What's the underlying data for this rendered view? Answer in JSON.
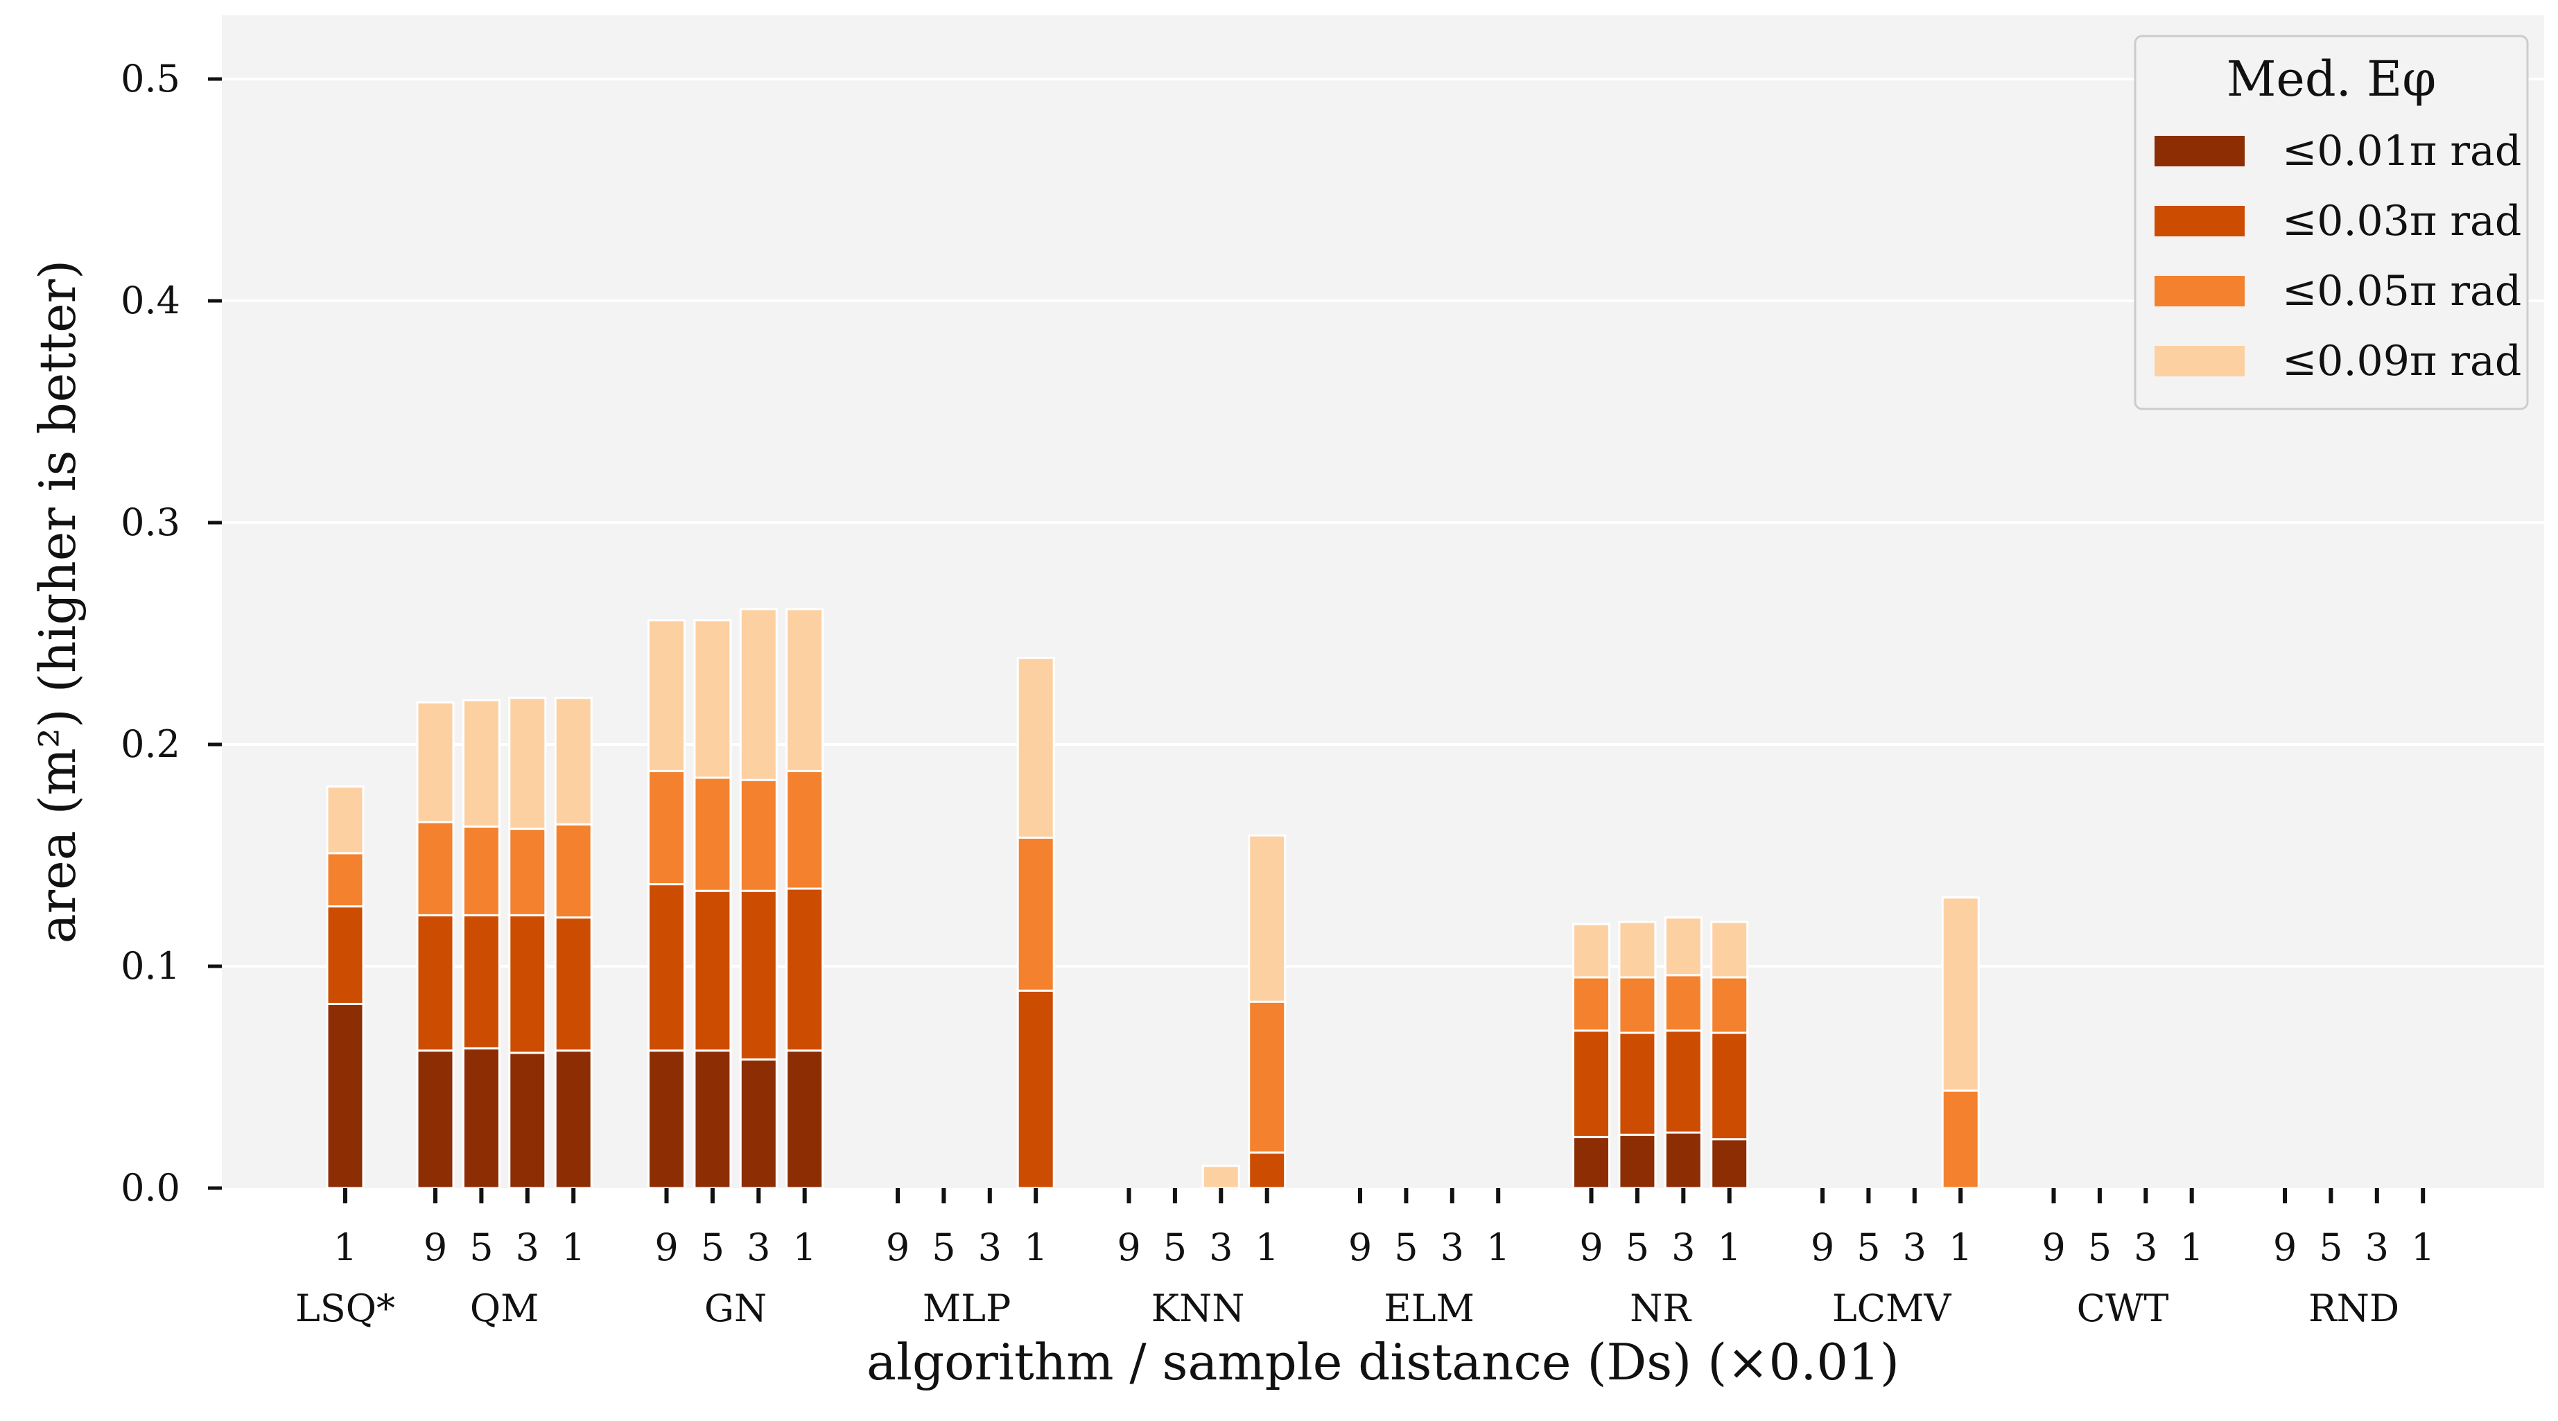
{
  "chart_data": {
    "type": "bar",
    "stacked": true,
    "xlabel": "algorithm / sample distance (Ds) (×0.01)",
    "ylabel": "area (m²) (higher is better)",
    "ylim": [
      0,
      0.52
    ],
    "yticks": [
      "0.0",
      "0.1",
      "0.2",
      "0.3",
      "0.4",
      "0.5"
    ],
    "grid": true,
    "legend": {
      "title": "Med. Eφ",
      "position": "top-right",
      "entries": [
        "≤0.01π rad",
        "≤0.03π rad",
        "≤0.05π rad",
        "≤0.09π rad"
      ]
    },
    "series_colors": [
      "#8c2d04",
      "#cc4c02",
      "#f4812d",
      "#fdd0a2"
    ],
    "groups": [
      {
        "name": "LSQ*",
        "ds": [
          "1"
        ],
        "values": [
          [
            0.083,
            0.127,
            0.151,
            0.181
          ]
        ]
      },
      {
        "name": "QM",
        "ds": [
          "9",
          "5",
          "3",
          "1"
        ],
        "values": [
          [
            0.062,
            0.123,
            0.165,
            0.219
          ],
          [
            0.063,
            0.123,
            0.163,
            0.22
          ],
          [
            0.061,
            0.123,
            0.162,
            0.221
          ],
          [
            0.062,
            0.122,
            0.164,
            0.221
          ]
        ]
      },
      {
        "name": "GN",
        "ds": [
          "9",
          "5",
          "3",
          "1"
        ],
        "values": [
          [
            0.062,
            0.137,
            0.188,
            0.256
          ],
          [
            0.062,
            0.134,
            0.185,
            0.256
          ],
          [
            0.058,
            0.134,
            0.184,
            0.261
          ],
          [
            0.062,
            0.135,
            0.188,
            0.261
          ]
        ]
      },
      {
        "name": "MLP",
        "ds": [
          "9",
          "5",
          "3",
          "1"
        ],
        "values": [
          [
            0,
            0,
            0,
            0
          ],
          [
            0,
            0,
            0,
            0
          ],
          [
            0,
            0,
            0,
            0
          ],
          [
            0,
            0.089,
            0.158,
            0.239
          ]
        ]
      },
      {
        "name": "KNN",
        "ds": [
          "9",
          "5",
          "3",
          "1"
        ],
        "values": [
          [
            0,
            0,
            0,
            0
          ],
          [
            0,
            0,
            0,
            0
          ],
          [
            0,
            0,
            0,
            0.01
          ],
          [
            0,
            0.016,
            0.084,
            0.159
          ]
        ]
      },
      {
        "name": "ELM",
        "ds": [
          "9",
          "5",
          "3",
          "1"
        ],
        "values": [
          [
            0,
            0,
            0,
            0
          ],
          [
            0,
            0,
            0,
            0
          ],
          [
            0,
            0,
            0,
            0
          ],
          [
            0,
            0,
            0,
            0
          ]
        ]
      },
      {
        "name": "NR",
        "ds": [
          "9",
          "5",
          "3",
          "1"
        ],
        "values": [
          [
            0.023,
            0.071,
            0.095,
            0.119
          ],
          [
            0.024,
            0.07,
            0.095,
            0.12
          ],
          [
            0.025,
            0.071,
            0.096,
            0.122
          ],
          [
            0.022,
            0.07,
            0.095,
            0.12
          ]
        ]
      },
      {
        "name": "LCMV",
        "ds": [
          "9",
          "5",
          "3",
          "1"
        ],
        "values": [
          [
            0,
            0,
            0,
            0
          ],
          [
            0,
            0,
            0,
            0
          ],
          [
            0,
            0,
            0,
            0
          ],
          [
            0,
            0,
            0.044,
            0.131
          ]
        ]
      },
      {
        "name": "CWT",
        "ds": [
          "9",
          "5",
          "3",
          "1"
        ],
        "values": [
          [
            0,
            0,
            0,
            0
          ],
          [
            0,
            0,
            0,
            0
          ],
          [
            0,
            0,
            0,
            0
          ],
          [
            0,
            0,
            0,
            0
          ]
        ]
      },
      {
        "name": "RND",
        "ds": [
          "9",
          "5",
          "3",
          "1"
        ],
        "values": [
          [
            0,
            0,
            0,
            0
          ],
          [
            0,
            0,
            0,
            0
          ],
          [
            0,
            0,
            0,
            0
          ],
          [
            0,
            0,
            0,
            0
          ]
        ]
      }
    ]
  }
}
